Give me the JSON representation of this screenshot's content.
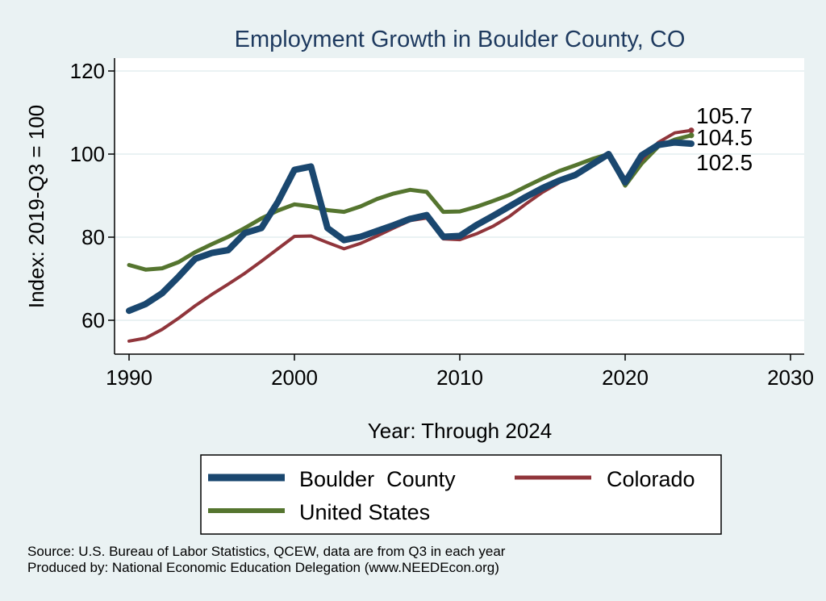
{
  "chart_data": {
    "type": "line",
    "title": "Employment Growth in Boulder County, CO",
    "xlabel": "Year: Through 2024",
    "ylabel": "Index: 2019-Q3 = 100",
    "xlim": [
      1990,
      2030
    ],
    "ylim": [
      52,
      120
    ],
    "x_ticks": [
      1990,
      2000,
      2010,
      2020,
      2030
    ],
    "y_ticks": [
      60,
      80,
      100,
      120
    ],
    "grid": true,
    "x": [
      1990,
      1991,
      1992,
      1993,
      1994,
      1995,
      1996,
      1997,
      1998,
      1999,
      2000,
      2001,
      2002,
      2003,
      2004,
      2005,
      2006,
      2007,
      2008,
      2009,
      2010,
      2011,
      2012,
      2013,
      2014,
      2015,
      2016,
      2017,
      2018,
      2019,
      2020,
      2021,
      2022,
      2023,
      2024
    ],
    "series": [
      {
        "name": "Boulder  County",
        "color": "#1a476f",
        "values": [
          62.3,
          63.9,
          66.5,
          70.5,
          74.8,
          76.2,
          76.9,
          81.0,
          82.2,
          88.5,
          96.2,
          97.0,
          82.2,
          79.3,
          80.1,
          81.5,
          82.9,
          84.4,
          85.3,
          80.1,
          80.3,
          82.9,
          85.1,
          87.4,
          89.7,
          91.8,
          93.6,
          95.0,
          97.5,
          100.0,
          93.2,
          99.7,
          102.2,
          102.8,
          102.5
        ],
        "end_label": "102.5"
      },
      {
        "name": "Colorado",
        "color": "#90353b",
        "values": [
          55.0,
          55.7,
          57.8,
          60.5,
          63.5,
          66.2,
          68.7,
          71.3,
          74.2,
          77.2,
          80.2,
          80.3,
          78.7,
          77.2,
          78.5,
          80.3,
          82.2,
          84.0,
          84.6,
          79.6,
          79.4,
          80.8,
          82.6,
          85.0,
          88.0,
          90.8,
          93.1,
          95.4,
          97.7,
          100.0,
          94.1,
          98.6,
          102.8,
          105.1,
          105.7
        ],
        "end_label": "105.7"
      },
      {
        "name": "United States",
        "color": "#55752f",
        "values": [
          73.3,
          72.2,
          72.5,
          74.0,
          76.4,
          78.3,
          80.1,
          82.2,
          84.5,
          86.4,
          87.9,
          87.4,
          86.5,
          86.1,
          87.4,
          89.2,
          90.5,
          91.4,
          90.9,
          86.1,
          86.2,
          87.3,
          88.7,
          90.2,
          92.2,
          94.1,
          95.9,
          97.3,
          98.8,
          100.0,
          92.4,
          97.7,
          101.8,
          103.5,
          104.5
        ],
        "end_label": "104.5"
      }
    ],
    "legend_position": "bottom"
  },
  "source_note": "Source: U.S. Bureau of Labor Statistics, QCEW, data are from Q3 in each year",
  "producer_note": "Produced by: National Economic Education Delegation (www.NEEDEcon.org)"
}
